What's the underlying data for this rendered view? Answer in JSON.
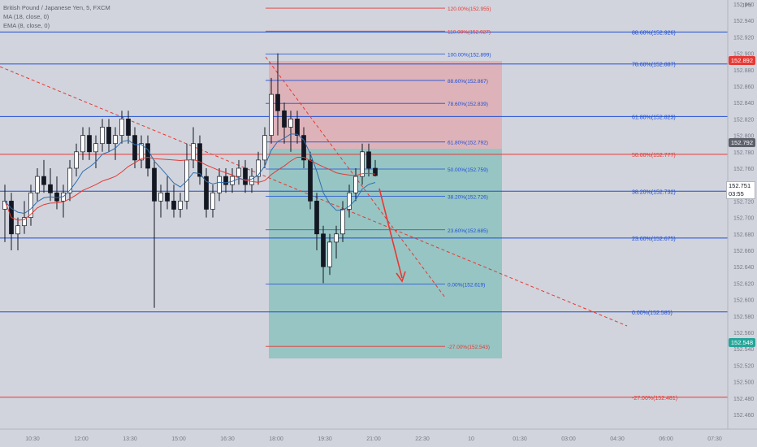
{
  "legend": {
    "symbol": "British Pound / Japanese Yen, 5, FXCM",
    "ma": "MA (18, close, 0)",
    "ema": "EMA (8, close, 0)"
  },
  "corner_label": "JPY",
  "colors": {
    "background": "#d1d4dc",
    "fib_blue": "#1e4fd6",
    "fib_red": "#e53935",
    "ma_line": "#e53935",
    "ema_line": "#2f6fb0",
    "stop_zone": "#e0a8ae",
    "target_zone": "#7fbfb8",
    "candle": "#131722",
    "arrow": "#e53935"
  },
  "price_axis": {
    "ticks": [
      "152.960",
      "152.940",
      "152.920",
      "152.900",
      "152.880",
      "152.860",
      "152.840",
      "152.820",
      "152.800",
      "152.780",
      "152.760",
      "152.740",
      "152.720",
      "152.700",
      "152.680",
      "152.660",
      "152.640",
      "152.620",
      "152.600",
      "152.580",
      "152.560",
      "152.540",
      "152.520",
      "152.500",
      "152.480",
      "152.460"
    ],
    "tags": [
      {
        "price": "152.892",
        "color": "#e53935"
      },
      {
        "price": "152.792",
        "color": "#5d606b"
      },
      {
        "price": "152.751",
        "color": "#ffffff"
      },
      {
        "price": "152.548",
        "color": "#26a69a"
      }
    ],
    "countdown": "03:55"
  },
  "time_axis": [
    "10:30",
    "12:00",
    "13:30",
    "15:00",
    "16:30",
    "18:00",
    "19:30",
    "21:00",
    "22:30",
    "10",
    "01:30",
    "03:00",
    "04:30",
    "06:00",
    "07:30"
  ],
  "fib_large": {
    "labels": [
      "88.60%(152.926)",
      "78.60%(152.887)",
      "61.80%(152.823)",
      "50.00%(152.777)",
      "38.20%(152.732)",
      "23.60%(152.675)",
      "0.00%(152.585)",
      "-27.00%(152.481)"
    ]
  },
  "fib_small": {
    "labels": [
      "120.00%(152.955)",
      "110.00%(152.927)",
      "100.00%(152.899)",
      "88.60%(152.867)",
      "78.60%(152.839)",
      "61.80%(152.792)",
      "50.00%(152.759)",
      "38.20%(152.726)",
      "23.60%(152.685)",
      "0.00%(152.619)",
      "-27.00%(152.543)"
    ]
  },
  "chart_data": {
    "type": "candlestick",
    "symbol": "British Pound / Japanese Yen",
    "timeframe": "5",
    "current_price": 152.751,
    "yrange": [
      152.46,
      152.97
    ],
    "candles": [
      {
        "o": 152.71,
        "h": 152.74,
        "l": 152.67,
        "c": 152.72
      },
      {
        "o": 152.72,
        "h": 152.73,
        "l": 152.66,
        "c": 152.68
      },
      {
        "o": 152.68,
        "h": 152.7,
        "l": 152.66,
        "c": 152.69
      },
      {
        "o": 152.69,
        "h": 152.72,
        "l": 152.68,
        "c": 152.7
      },
      {
        "o": 152.7,
        "h": 152.74,
        "l": 152.69,
        "c": 152.73
      },
      {
        "o": 152.73,
        "h": 152.76,
        "l": 152.72,
        "c": 152.75
      },
      {
        "o": 152.75,
        "h": 152.77,
        "l": 152.73,
        "c": 152.74
      },
      {
        "o": 152.74,
        "h": 152.76,
        "l": 152.72,
        "c": 152.73
      },
      {
        "o": 152.73,
        "h": 152.75,
        "l": 152.71,
        "c": 152.72
      },
      {
        "o": 152.72,
        "h": 152.74,
        "l": 152.7,
        "c": 152.73
      },
      {
        "o": 152.73,
        "h": 152.77,
        "l": 152.72,
        "c": 152.76
      },
      {
        "o": 152.76,
        "h": 152.79,
        "l": 152.75,
        "c": 152.78
      },
      {
        "o": 152.78,
        "h": 152.81,
        "l": 152.77,
        "c": 152.8
      },
      {
        "o": 152.8,
        "h": 152.81,
        "l": 152.77,
        "c": 152.78
      },
      {
        "o": 152.78,
        "h": 152.8,
        "l": 152.76,
        "c": 152.79
      },
      {
        "o": 152.79,
        "h": 152.82,
        "l": 152.78,
        "c": 152.81
      },
      {
        "o": 152.81,
        "h": 152.82,
        "l": 152.78,
        "c": 152.79
      },
      {
        "o": 152.79,
        "h": 152.81,
        "l": 152.77,
        "c": 152.8
      },
      {
        "o": 152.8,
        "h": 152.83,
        "l": 152.79,
        "c": 152.82
      },
      {
        "o": 152.82,
        "h": 152.83,
        "l": 152.79,
        "c": 152.8
      },
      {
        "o": 152.8,
        "h": 152.81,
        "l": 152.76,
        "c": 152.77
      },
      {
        "o": 152.77,
        "h": 152.8,
        "l": 152.76,
        "c": 152.79
      },
      {
        "o": 152.79,
        "h": 152.8,
        "l": 152.75,
        "c": 152.76
      },
      {
        "o": 152.76,
        "h": 152.77,
        "l": 152.59,
        "c": 152.72
      },
      {
        "o": 152.72,
        "h": 152.74,
        "l": 152.7,
        "c": 152.73
      },
      {
        "o": 152.73,
        "h": 152.75,
        "l": 152.71,
        "c": 152.72
      },
      {
        "o": 152.72,
        "h": 152.74,
        "l": 152.7,
        "c": 152.71
      },
      {
        "o": 152.71,
        "h": 152.73,
        "l": 152.7,
        "c": 152.72
      },
      {
        "o": 152.72,
        "h": 152.79,
        "l": 152.71,
        "c": 152.77
      },
      {
        "o": 152.77,
        "h": 152.81,
        "l": 152.76,
        "c": 152.79
      },
      {
        "o": 152.79,
        "h": 152.8,
        "l": 152.74,
        "c": 152.75
      },
      {
        "o": 152.75,
        "h": 152.76,
        "l": 152.7,
        "c": 152.71
      },
      {
        "o": 152.71,
        "h": 152.74,
        "l": 152.7,
        "c": 152.73
      },
      {
        "o": 152.73,
        "h": 152.76,
        "l": 152.72,
        "c": 152.75
      },
      {
        "o": 152.75,
        "h": 152.76,
        "l": 152.73,
        "c": 152.74
      },
      {
        "o": 152.74,
        "h": 152.76,
        "l": 152.73,
        "c": 152.75
      },
      {
        "o": 152.75,
        "h": 152.77,
        "l": 152.74,
        "c": 152.76
      },
      {
        "o": 152.76,
        "h": 152.77,
        "l": 152.73,
        "c": 152.74
      },
      {
        "o": 152.74,
        "h": 152.76,
        "l": 152.73,
        "c": 152.75
      },
      {
        "o": 152.75,
        "h": 152.78,
        "l": 152.74,
        "c": 152.77
      },
      {
        "o": 152.77,
        "h": 152.81,
        "l": 152.76,
        "c": 152.8
      },
      {
        "o": 152.8,
        "h": 152.87,
        "l": 152.79,
        "c": 152.85
      },
      {
        "o": 152.85,
        "h": 152.9,
        "l": 152.8,
        "c": 152.83
      },
      {
        "o": 152.83,
        "h": 152.84,
        "l": 152.79,
        "c": 152.81
      },
      {
        "o": 152.81,
        "h": 152.83,
        "l": 152.78,
        "c": 152.82
      },
      {
        "o": 152.82,
        "h": 152.83,
        "l": 152.79,
        "c": 152.8
      },
      {
        "o": 152.8,
        "h": 152.81,
        "l": 152.76,
        "c": 152.77
      },
      {
        "o": 152.77,
        "h": 152.78,
        "l": 152.71,
        "c": 152.72
      },
      {
        "o": 152.72,
        "h": 152.73,
        "l": 152.66,
        "c": 152.68
      },
      {
        "o": 152.68,
        "h": 152.69,
        "l": 152.62,
        "c": 152.64
      },
      {
        "o": 152.64,
        "h": 152.68,
        "l": 152.63,
        "c": 152.67
      },
      {
        "o": 152.67,
        "h": 152.69,
        "l": 152.65,
        "c": 152.68
      },
      {
        "o": 152.68,
        "h": 152.72,
        "l": 152.67,
        "c": 152.71
      },
      {
        "o": 152.71,
        "h": 152.74,
        "l": 152.7,
        "c": 152.73
      },
      {
        "o": 152.73,
        "h": 152.76,
        "l": 152.72,
        "c": 152.75
      },
      {
        "o": 152.75,
        "h": 152.79,
        "l": 152.74,
        "c": 152.78
      },
      {
        "o": 152.78,
        "h": 152.79,
        "l": 152.75,
        "c": 152.76
      },
      {
        "o": 152.76,
        "h": 152.77,
        "l": 152.75,
        "c": 152.751
      }
    ]
  }
}
